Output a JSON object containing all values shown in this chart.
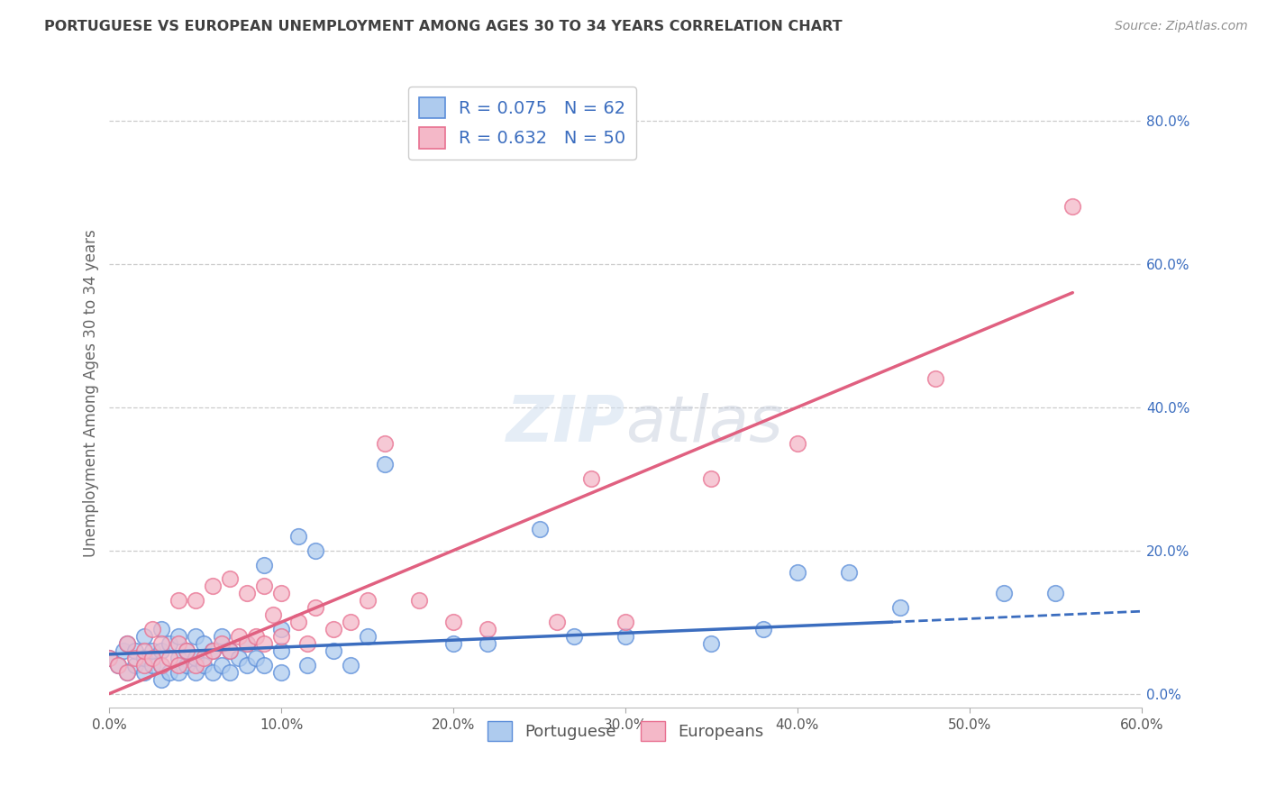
{
  "title": "PORTUGUESE VS EUROPEAN UNEMPLOYMENT AMONG AGES 30 TO 34 YEARS CORRELATION CHART",
  "source": "Source: ZipAtlas.com",
  "ylabel": "Unemployment Among Ages 30 to 34 years",
  "portuguese_R": 0.075,
  "portuguese_N": 62,
  "european_R": 0.632,
  "european_N": 50,
  "xlim": [
    0.0,
    0.6
  ],
  "ylim": [
    -0.02,
    0.86
  ],
  "xticks": [
    0.0,
    0.1,
    0.2,
    0.3,
    0.4,
    0.5,
    0.6
  ],
  "yticks": [
    0.0,
    0.2,
    0.4,
    0.6,
    0.8
  ],
  "portuguese_color": "#aecbee",
  "european_color": "#f4b8c8",
  "portuguese_edge_color": "#5b8dd9",
  "european_edge_color": "#e87090",
  "portuguese_line_color": "#3b6dbf",
  "european_line_color": "#e06080",
  "axis_label_color": "#3b6dbf",
  "title_color": "#404040",
  "source_color": "#909090",
  "grid_color": "#cccccc",
  "portuguese_x": [
    0.0,
    0.005,
    0.008,
    0.01,
    0.01,
    0.015,
    0.015,
    0.02,
    0.02,
    0.02,
    0.025,
    0.025,
    0.03,
    0.03,
    0.03,
    0.03,
    0.035,
    0.035,
    0.04,
    0.04,
    0.04,
    0.045,
    0.045,
    0.05,
    0.05,
    0.05,
    0.055,
    0.055,
    0.06,
    0.06,
    0.065,
    0.065,
    0.07,
    0.07,
    0.075,
    0.08,
    0.08,
    0.085,
    0.09,
    0.09,
    0.1,
    0.1,
    0.1,
    0.11,
    0.115,
    0.12,
    0.13,
    0.14,
    0.15,
    0.16,
    0.2,
    0.22,
    0.25,
    0.27,
    0.3,
    0.35,
    0.38,
    0.4,
    0.43,
    0.46,
    0.52,
    0.55
  ],
  "portuguese_y": [
    0.05,
    0.04,
    0.06,
    0.03,
    0.07,
    0.04,
    0.06,
    0.03,
    0.05,
    0.08,
    0.04,
    0.06,
    0.02,
    0.04,
    0.06,
    0.09,
    0.03,
    0.07,
    0.03,
    0.05,
    0.08,
    0.04,
    0.06,
    0.03,
    0.05,
    0.08,
    0.04,
    0.07,
    0.03,
    0.06,
    0.04,
    0.08,
    0.03,
    0.06,
    0.05,
    0.04,
    0.07,
    0.05,
    0.04,
    0.18,
    0.03,
    0.06,
    0.09,
    0.22,
    0.04,
    0.2,
    0.06,
    0.04,
    0.08,
    0.32,
    0.07,
    0.07,
    0.23,
    0.08,
    0.08,
    0.07,
    0.09,
    0.17,
    0.17,
    0.12,
    0.14,
    0.14
  ],
  "european_x": [
    0.0,
    0.005,
    0.01,
    0.01,
    0.015,
    0.02,
    0.02,
    0.025,
    0.025,
    0.03,
    0.03,
    0.035,
    0.04,
    0.04,
    0.04,
    0.045,
    0.05,
    0.05,
    0.055,
    0.06,
    0.06,
    0.065,
    0.07,
    0.07,
    0.075,
    0.08,
    0.08,
    0.085,
    0.09,
    0.09,
    0.095,
    0.1,
    0.1,
    0.11,
    0.115,
    0.12,
    0.13,
    0.14,
    0.15,
    0.16,
    0.18,
    0.2,
    0.22,
    0.26,
    0.28,
    0.3,
    0.35,
    0.4,
    0.48,
    0.56
  ],
  "european_y": [
    0.05,
    0.04,
    0.03,
    0.07,
    0.05,
    0.04,
    0.06,
    0.05,
    0.09,
    0.04,
    0.07,
    0.05,
    0.04,
    0.07,
    0.13,
    0.06,
    0.04,
    0.13,
    0.05,
    0.06,
    0.15,
    0.07,
    0.06,
    0.16,
    0.08,
    0.07,
    0.14,
    0.08,
    0.07,
    0.15,
    0.11,
    0.08,
    0.14,
    0.1,
    0.07,
    0.12,
    0.09,
    0.1,
    0.13,
    0.35,
    0.13,
    0.1,
    0.09,
    0.1,
    0.3,
    0.1,
    0.3,
    0.35,
    0.44,
    0.68
  ],
  "port_trendline_x_start": 0.0,
  "port_trendline_x_solid_end": 0.455,
  "port_trendline_x_end": 0.6,
  "port_trendline_y_start": 0.055,
  "port_trendline_y_solid_end": 0.1,
  "port_trendline_y_end": 0.115,
  "euro_trendline_x_start": 0.0,
  "euro_trendline_x_end": 0.56,
  "euro_trendline_y_start": 0.0,
  "euro_trendline_y_end": 0.56
}
